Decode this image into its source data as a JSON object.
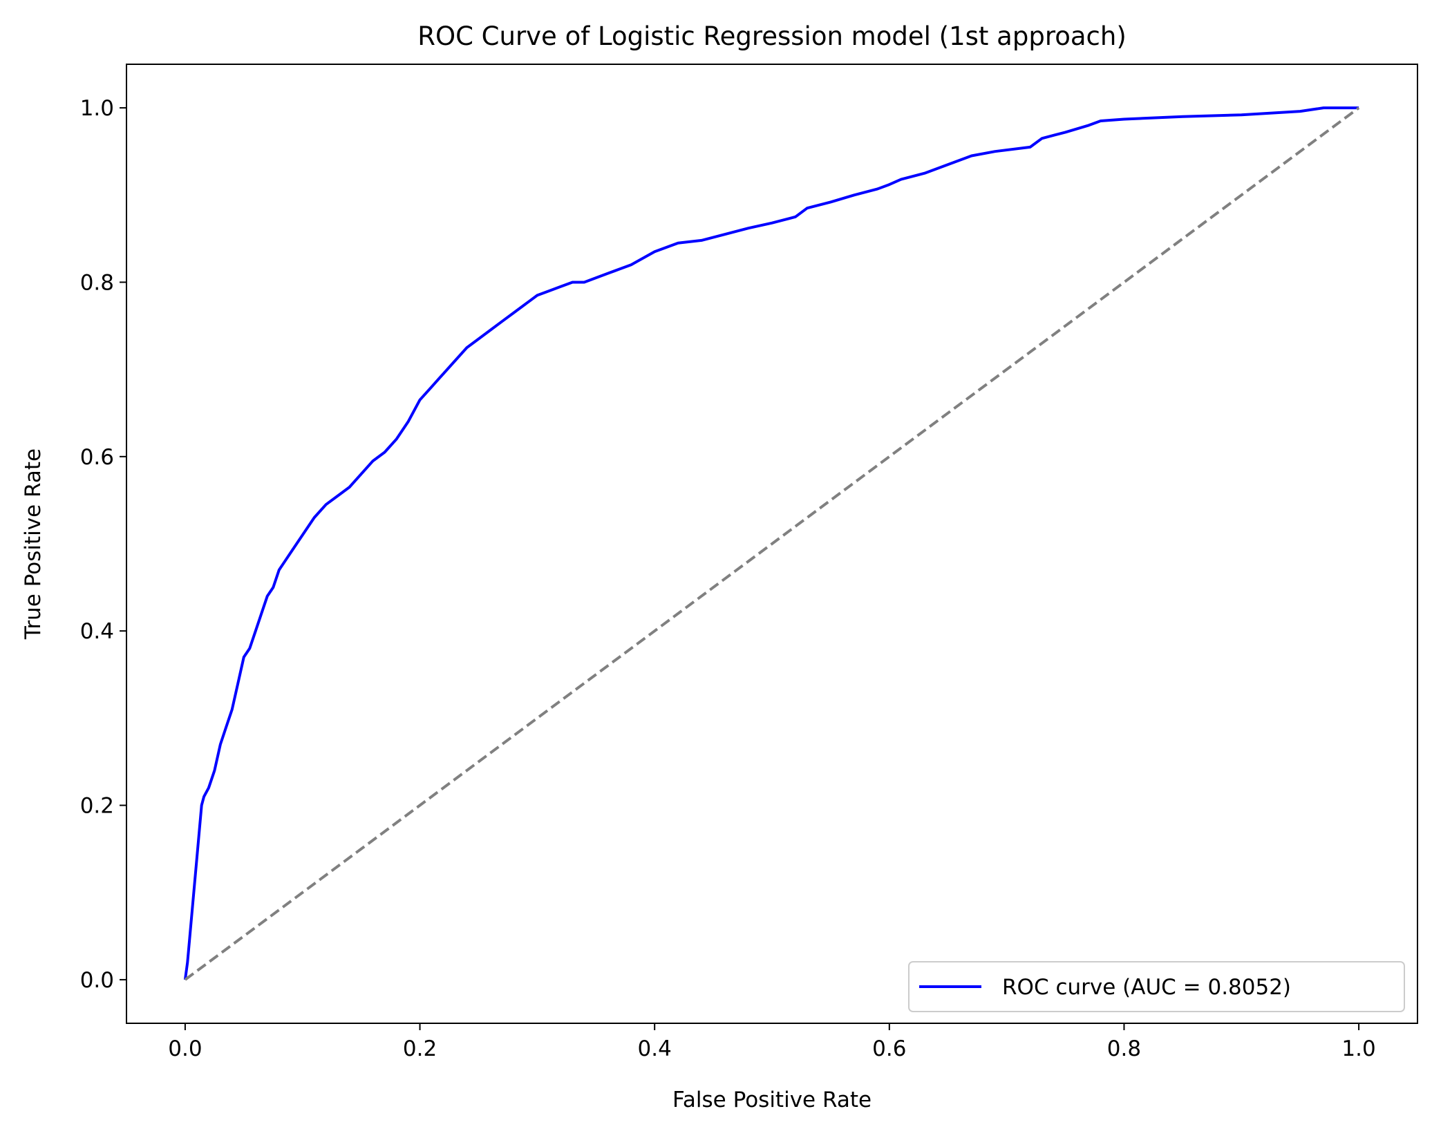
{
  "chart_data": {
    "type": "line",
    "title": "ROC Curve of Logistic Regression model (1st approach)",
    "xlabel": "False Positive Rate",
    "ylabel": "True Positive Rate",
    "xlim": [
      -0.05,
      1.05
    ],
    "ylim": [
      -0.05,
      1.05
    ],
    "xticks": [
      "0.0",
      "0.2",
      "0.4",
      "0.6",
      "0.8",
      "1.0"
    ],
    "yticks": [
      "0.0",
      "0.2",
      "0.4",
      "0.6",
      "0.8",
      "1.0"
    ],
    "grid": false,
    "legend_position": "lower-right",
    "series": [
      {
        "name": "ROC curve (AUC = 0.8052)",
        "color": "#0000ff",
        "style": "solid",
        "x": [
          0.0,
          0.002,
          0.004,
          0.006,
          0.008,
          0.01,
          0.012,
          0.014,
          0.016,
          0.02,
          0.025,
          0.03,
          0.035,
          0.04,
          0.045,
          0.05,
          0.055,
          0.06,
          0.065,
          0.07,
          0.075,
          0.08,
          0.085,
          0.09,
          0.1,
          0.11,
          0.12,
          0.13,
          0.14,
          0.15,
          0.16,
          0.17,
          0.18,
          0.19,
          0.2,
          0.21,
          0.22,
          0.23,
          0.24,
          0.25,
          0.26,
          0.27,
          0.28,
          0.29,
          0.3,
          0.31,
          0.32,
          0.33,
          0.34,
          0.35,
          0.36,
          0.37,
          0.38,
          0.4,
          0.42,
          0.44,
          0.46,
          0.48,
          0.5,
          0.52,
          0.53,
          0.55,
          0.57,
          0.59,
          0.6,
          0.61,
          0.63,
          0.65,
          0.67,
          0.69,
          0.72,
          0.73,
          0.75,
          0.77,
          0.78,
          0.8,
          0.85,
          0.9,
          0.95,
          0.97,
          1.0
        ],
        "y": [
          0.0,
          0.02,
          0.05,
          0.08,
          0.11,
          0.14,
          0.17,
          0.2,
          0.21,
          0.22,
          0.24,
          0.27,
          0.29,
          0.31,
          0.34,
          0.37,
          0.38,
          0.4,
          0.42,
          0.44,
          0.45,
          0.47,
          0.48,
          0.49,
          0.51,
          0.53,
          0.545,
          0.555,
          0.565,
          0.58,
          0.595,
          0.605,
          0.62,
          0.64,
          0.665,
          0.68,
          0.695,
          0.71,
          0.725,
          0.735,
          0.745,
          0.755,
          0.765,
          0.775,
          0.785,
          0.79,
          0.795,
          0.8,
          0.8,
          0.805,
          0.81,
          0.815,
          0.82,
          0.835,
          0.845,
          0.848,
          0.855,
          0.862,
          0.868,
          0.875,
          0.885,
          0.892,
          0.9,
          0.907,
          0.912,
          0.918,
          0.925,
          0.935,
          0.945,
          0.95,
          0.955,
          0.965,
          0.972,
          0.98,
          0.985,
          0.987,
          0.99,
          0.992,
          0.996,
          1.0,
          1.0
        ]
      },
      {
        "name": "",
        "color": "#808080",
        "style": "dashed",
        "x": [
          0.0,
          1.0
        ],
        "y": [
          0.0,
          1.0
        ]
      }
    ]
  }
}
